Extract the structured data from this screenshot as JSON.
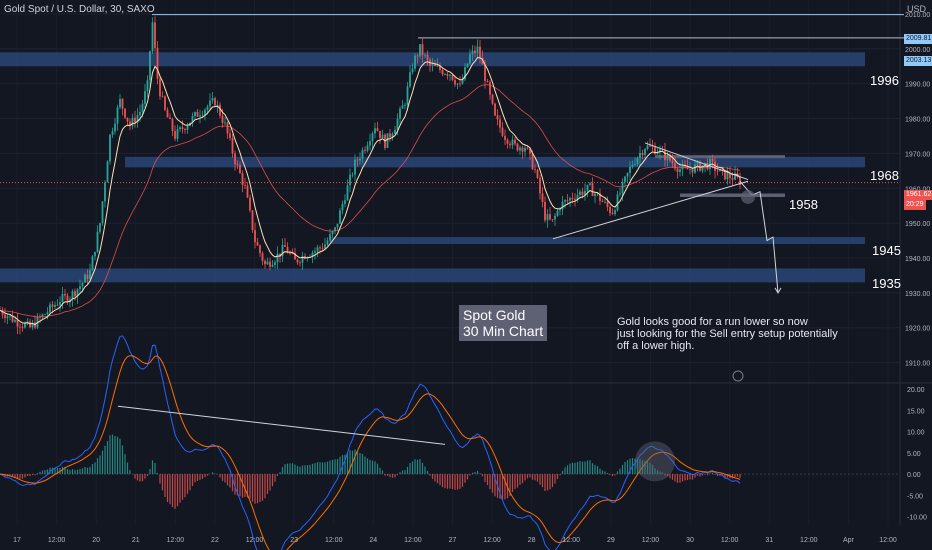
{
  "header": {
    "symbol": "Gold Spot / U.S. Dollar, 30, SAXO",
    "currency": "USD"
  },
  "annotations": {
    "title_lines": [
      "Spot Gold",
      "30 Min Chart"
    ],
    "note_lines": [
      "Gold looks good for a run lower so now",
      "just looking for the Sell entry setup potentially",
      "off a lower high."
    ],
    "zones": [
      {
        "label": "1996",
        "low": 1995,
        "high": 1999
      },
      {
        "label": "1968",
        "low": 1966,
        "high": 1969
      },
      {
        "label": "1958",
        "low": 1957.5,
        "high": 1958.5
      },
      {
        "label": "1945",
        "low": 1944,
        "high": 1946
      },
      {
        "label": "1935",
        "low": 1933,
        "high": 1937
      }
    ],
    "price_badges": {
      "high1": "2009.81",
      "high2": "2003.13",
      "last_price": "1961.62",
      "countdown": "20:29"
    }
  },
  "colors": {
    "background": "#131722",
    "zone": "#2a4677",
    "up": "#26a69a",
    "down": "#ef5350",
    "ema_fast": "#ffe0b2",
    "ema_slow": "#ef5350",
    "macd": "#2962ff",
    "signal": "#ff6d00",
    "level_line": "#90caf9"
  },
  "chart_data": {
    "type": "candlestick",
    "y_price": {
      "min": 1905,
      "max": 2014,
      "ticks": [
        "2010.00",
        "2000.00",
        "1990.00",
        "1980.00",
        "1970.00",
        "1960.00",
        "1950.00",
        "1940.00",
        "1930.00",
        "1920.00",
        "1910.00"
      ]
    },
    "y_macd": {
      "min": -12,
      "max": 21,
      "ticks": [
        "20.00",
        "15.00",
        "10.00",
        "5.00",
        "0.00",
        "-5.00",
        "-10.00"
      ]
    },
    "x_ticks": [
      "17",
      "12:00",
      "20",
      "21",
      "12:00",
      "22",
      "12:00",
      "23",
      "12:00",
      "24",
      "12:00",
      "27",
      "12:00",
      "28",
      "12:00",
      "29",
      "12:00",
      "30",
      "12:00",
      "31",
      "12:00",
      "Apr",
      "12:00"
    ],
    "price_anchors": [
      [
        0,
        1925
      ],
      [
        15,
        1922
      ],
      [
        30,
        1920
      ],
      [
        45,
        1924
      ],
      [
        60,
        1928
      ],
      [
        70,
        1929
      ],
      [
        80,
        1932
      ],
      [
        90,
        1936
      ],
      [
        100,
        1950
      ],
      [
        110,
        1975
      ],
      [
        120,
        1985
      ],
      [
        130,
        1978
      ],
      [
        140,
        1982
      ],
      [
        148,
        1990
      ],
      [
        152,
        2009
      ],
      [
        158,
        1990
      ],
      [
        165,
        1982
      ],
      [
        175,
        1975
      ],
      [
        185,
        1978
      ],
      [
        200,
        1982
      ],
      [
        215,
        1985
      ],
      [
        225,
        1978
      ],
      [
        235,
        1968
      ],
      [
        245,
        1960
      ],
      [
        255,
        1945
      ],
      [
        265,
        1938
      ],
      [
        275,
        1940
      ],
      [
        285,
        1943
      ],
      [
        295,
        1939
      ],
      [
        305,
        1941
      ],
      [
        315,
        1942
      ],
      [
        325,
        1944
      ],
      [
        335,
        1948
      ],
      [
        345,
        1958
      ],
      [
        355,
        1967
      ],
      [
        365,
        1972
      ],
      [
        375,
        1978
      ],
      [
        385,
        1973
      ],
      [
        395,
        1978
      ],
      [
        405,
        1985
      ],
      [
        413,
        1996
      ],
      [
        420,
        2000
      ],
      [
        430,
        1995
      ],
      [
        440,
        1994
      ],
      [
        450,
        1993
      ],
      [
        460,
        1989
      ],
      [
        470,
        1998
      ],
      [
        478,
        2000
      ],
      [
        485,
        1992
      ],
      [
        495,
        1980
      ],
      [
        505,
        1975
      ],
      [
        515,
        1972
      ],
      [
        525,
        1972
      ],
      [
        535,
        1965
      ],
      [
        545,
        1952
      ],
      [
        552,
        1950
      ],
      [
        560,
        1955
      ],
      [
        575,
        1958
      ],
      [
        590,
        1960
      ],
      [
        600,
        1957
      ],
      [
        612,
        1953
      ],
      [
        622,
        1960
      ],
      [
        632,
        1967
      ],
      [
        645,
        1972
      ],
      [
        658,
        1971
      ],
      [
        670,
        1968
      ],
      [
        682,
        1965
      ],
      [
        695,
        1966
      ],
      [
        710,
        1967
      ],
      [
        722,
        1964
      ],
      [
        735,
        1963
      ],
      [
        740,
        1962
      ]
    ],
    "series": [
      {
        "name": "",
        "type": "ema"
      },
      {
        "name": "",
        "type": "sma"
      }
    ],
    "projection_path": [
      [
        740,
        1962
      ],
      [
        752,
        1958
      ],
      [
        760,
        1959
      ],
      [
        767,
        1945
      ],
      [
        773,
        1946
      ],
      [
        778,
        1930
      ]
    ],
    "last_price": 1961.62
  }
}
